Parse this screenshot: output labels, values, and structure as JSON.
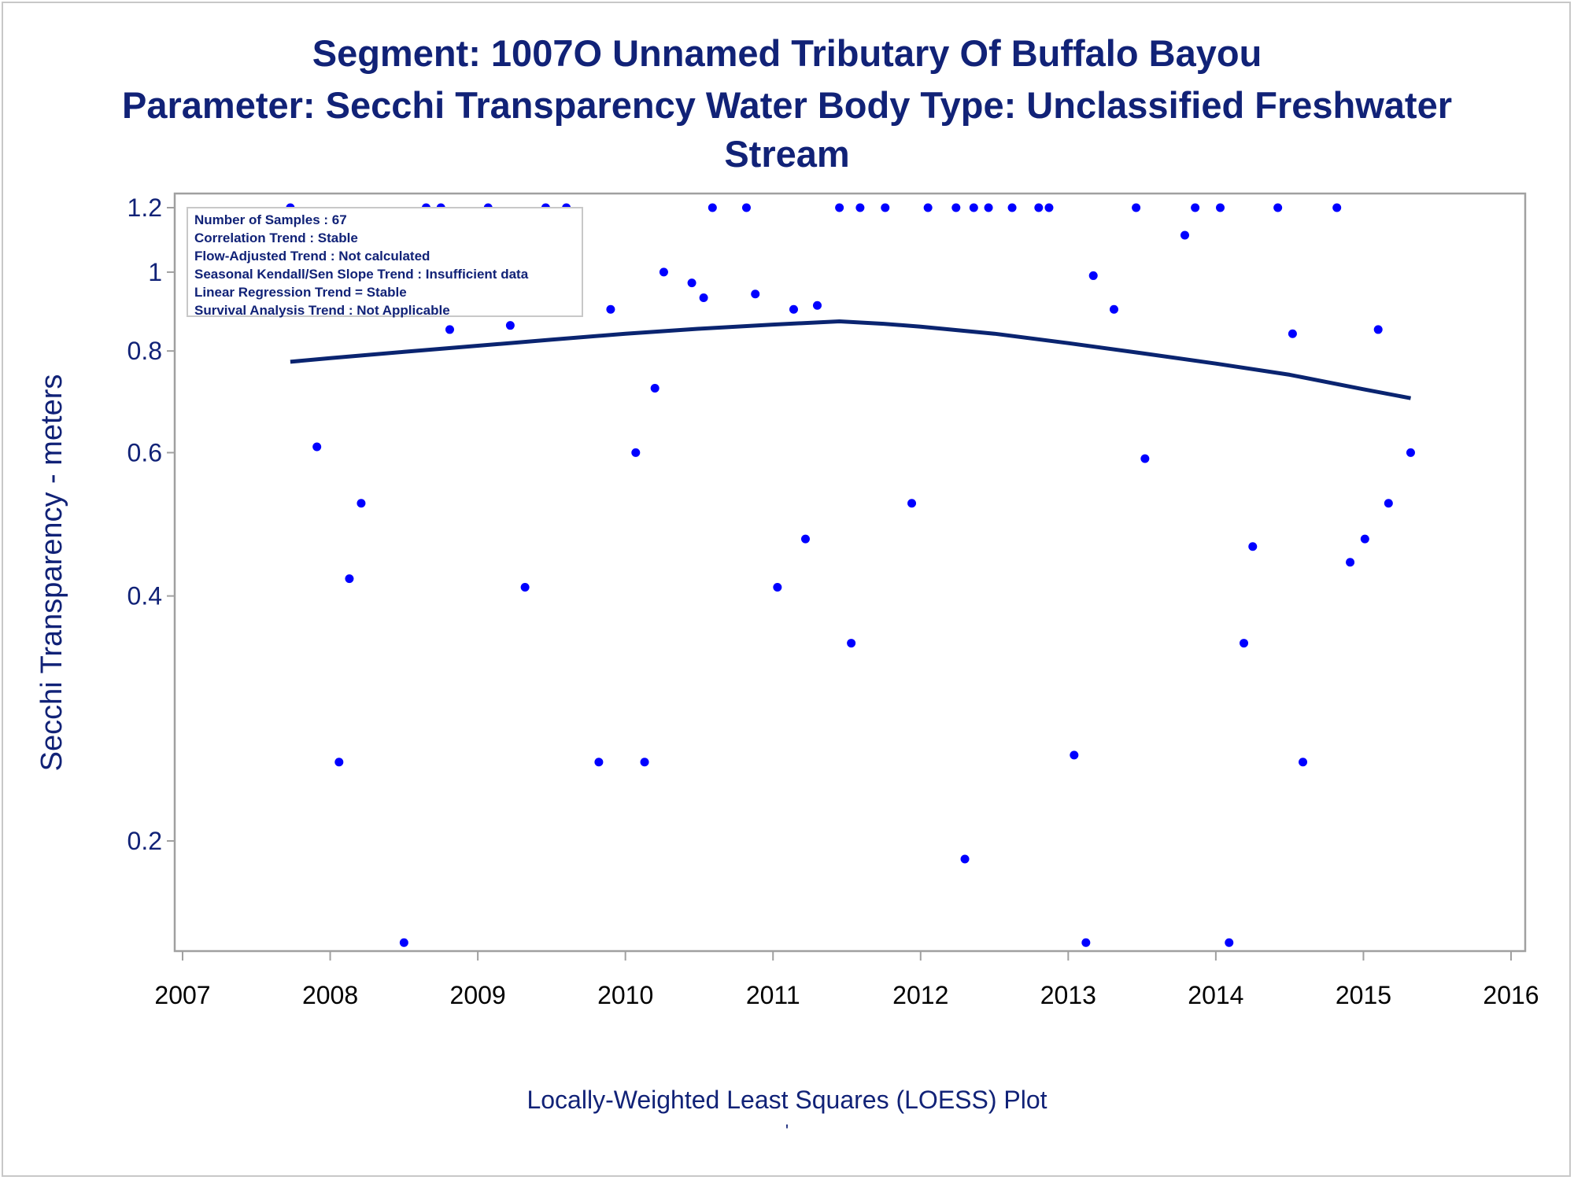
{
  "titles": {
    "line1": "Segment: 1007O  Unnamed Tributary Of Buffalo Bayou",
    "line2": "Parameter: Secchi Transparency   Water Body Type: Unclassified Freshwater",
    "line3": "Stream"
  },
  "stats_box": {
    "lines": [
      "Number of Samples : 67",
      "Correlation Trend : Stable",
      "Flow-Adjusted Trend : Not calculated",
      "Seasonal Kendall/Sen Slope Trend : Insufficient data",
      "Linear Regression Trend = Stable",
      "Survival Analysis Trend : Not Applicable"
    ]
  },
  "footnote": {
    "text": "Locally-Weighted Least Squares (LOESS) Plot",
    "mark": "'"
  },
  "colors": {
    "text": "#112277",
    "points": "#0000ff",
    "curve": "#0a2470",
    "frame": "#a0a0a0"
  },
  "chart_data": {
    "type": "scatter",
    "ylabel": "Secchi Transparency - meters",
    "xlabel": "",
    "x_ticks": [
      "2007",
      "2008",
      "2009",
      "2010",
      "2011",
      "2012",
      "2013",
      "2014",
      "2015",
      "2016"
    ],
    "xlim": [
      2007,
      2016
    ],
    "y_scale": "log",
    "y_ticks": [
      0.2,
      0.4,
      0.6,
      0.8,
      1,
      1.2
    ],
    "y_tick_labels": [
      "0.2",
      "0.4",
      "0.6",
      "0.8",
      "1",
      "1.2"
    ],
    "ylim": [
      0.15,
      1.21
    ],
    "grid": false,
    "points": [
      [
        2007.73,
        1.2
      ],
      [
        2007.83,
        1.0
      ],
      [
        2007.91,
        0.61
      ],
      [
        2008.06,
        0.25
      ],
      [
        2008.13,
        0.42
      ],
      [
        2008.21,
        0.52
      ],
      [
        2008.38,
        1.0
      ],
      [
        2008.5,
        0.15
      ],
      [
        2008.65,
        1.2
      ],
      [
        2008.75,
        1.2
      ],
      [
        2008.81,
        0.85
      ],
      [
        2008.88,
        1.0
      ],
      [
        2009.07,
        1.2
      ],
      [
        2009.22,
        0.86
      ],
      [
        2009.32,
        0.41
      ],
      [
        2009.46,
        1.2
      ],
      [
        2009.54,
        1.0
      ],
      [
        2009.6,
        1.2
      ],
      [
        2009.82,
        0.25
      ],
      [
        2009.9,
        0.9
      ],
      [
        2010.07,
        0.6
      ],
      [
        2010.13,
        0.25
      ],
      [
        2010.2,
        0.72
      ],
      [
        2010.26,
        1.0
      ],
      [
        2010.45,
        0.97
      ],
      [
        2010.53,
        0.93
      ],
      [
        2010.59,
        1.2
      ],
      [
        2010.82,
        1.2
      ],
      [
        2010.88,
        0.94
      ],
      [
        2011.03,
        0.41
      ],
      [
        2011.14,
        0.9
      ],
      [
        2011.22,
        0.47
      ],
      [
        2011.3,
        0.91
      ],
      [
        2011.45,
        1.2
      ],
      [
        2011.53,
        0.35
      ],
      [
        2011.59,
        1.2
      ],
      [
        2011.76,
        1.2
      ],
      [
        2011.94,
        0.52
      ],
      [
        2012.05,
        1.2
      ],
      [
        2012.24,
        1.2
      ],
      [
        2012.3,
        0.19
      ],
      [
        2012.36,
        1.2
      ],
      [
        2012.46,
        1.2
      ],
      [
        2012.62,
        1.2
      ],
      [
        2012.8,
        1.2
      ],
      [
        2012.87,
        1.2
      ],
      [
        2013.04,
        0.255
      ],
      [
        2013.12,
        0.15
      ],
      [
        2013.17,
        0.99
      ],
      [
        2013.31,
        0.9
      ],
      [
        2013.46,
        1.2
      ],
      [
        2013.52,
        0.59
      ],
      [
        2013.79,
        1.11
      ],
      [
        2013.86,
        1.2
      ],
      [
        2014.03,
        1.2
      ],
      [
        2014.09,
        0.15
      ],
      [
        2014.19,
        0.35
      ],
      [
        2014.25,
        0.46
      ],
      [
        2014.42,
        1.2
      ],
      [
        2014.52,
        0.84
      ],
      [
        2014.59,
        0.25
      ],
      [
        2014.82,
        1.2
      ],
      [
        2014.91,
        0.44
      ],
      [
        2015.01,
        0.47
      ],
      [
        2015.1,
        0.85
      ],
      [
        2015.17,
        0.52
      ],
      [
        2015.32,
        0.6
      ]
    ],
    "loess": [
      [
        2007.73,
        0.776
      ],
      [
        2008.0,
        0.784
      ],
      [
        2008.5,
        0.798
      ],
      [
        2009.0,
        0.812
      ],
      [
        2009.5,
        0.826
      ],
      [
        2010.0,
        0.84
      ],
      [
        2010.5,
        0.852
      ],
      [
        2011.0,
        0.862
      ],
      [
        2011.45,
        0.87
      ],
      [
        2011.75,
        0.864
      ],
      [
        2012.0,
        0.857
      ],
      [
        2012.5,
        0.84
      ],
      [
        2013.0,
        0.818
      ],
      [
        2013.5,
        0.795
      ],
      [
        2014.0,
        0.772
      ],
      [
        2014.5,
        0.748
      ],
      [
        2015.0,
        0.718
      ],
      [
        2015.32,
        0.7
      ]
    ]
  }
}
